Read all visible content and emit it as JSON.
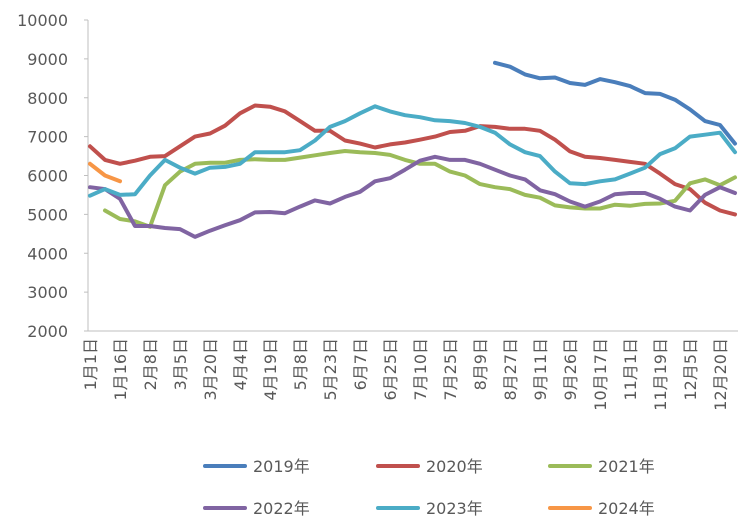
{
  "chart_data": {
    "type": "line",
    "categories": [
      "1月1日",
      null,
      "1月16日",
      null,
      "2月8日",
      null,
      "3月5日",
      null,
      "3月20日",
      null,
      "4月4日",
      null,
      "4月19日",
      null,
      "5月8日",
      null,
      "5月23日",
      null,
      "6月7日",
      null,
      "6月25日",
      null,
      "7月10日",
      null,
      "7月25日",
      null,
      "8月9日",
      null,
      "8月27日",
      null,
      "9月11日",
      null,
      "9月26日",
      null,
      "10月17日",
      null,
      "11月1日",
      null,
      "11月19日",
      null,
      "12月5日",
      null,
      "12月20日",
      null
    ],
    "series": [
      {
        "name": "2019年",
        "color": "#4a7ebb",
        "values": [
          null,
          null,
          null,
          null,
          null,
          null,
          null,
          null,
          null,
          null,
          null,
          null,
          null,
          null,
          null,
          null,
          null,
          null,
          null,
          null,
          null,
          null,
          null,
          null,
          null,
          null,
          null,
          8900,
          8800,
          8600,
          8500,
          8520,
          8380,
          8330,
          8480,
          8400,
          8300,
          8120,
          8100,
          7950,
          7700,
          7400,
          7300,
          6820
        ]
      },
      {
        "name": "2020年",
        "color": "#c0504d",
        "values": [
          6750,
          6400,
          6300,
          6380,
          6480,
          6500,
          6750,
          7000,
          7080,
          7280,
          7600,
          7800,
          7770,
          7650,
          7400,
          7150,
          7150,
          6900,
          6820,
          6720,
          6800,
          6850,
          6920,
          7000,
          7120,
          7150,
          7270,
          7250,
          7200,
          7200,
          7150,
          6920,
          6620,
          6480,
          6450,
          6400,
          6350,
          6300,
          6050,
          5780,
          5650,
          5300,
          5100,
          5000
        ]
      },
      {
        "name": "2021年",
        "color": "#9bbb59",
        "values": [
          null,
          5100,
          4880,
          4820,
          4680,
          5750,
          6100,
          6300,
          6330,
          6330,
          6400,
          6420,
          6400,
          6400,
          6460,
          6520,
          6580,
          6630,
          6600,
          6580,
          6530,
          6400,
          6300,
          6300,
          6100,
          6000,
          5780,
          5700,
          5650,
          5500,
          5430,
          5230,
          5180,
          5150,
          5150,
          5250,
          5220,
          5270,
          5280,
          5350,
          5800,
          5900,
          5750,
          5950
        ]
      },
      {
        "name": "2022年",
        "color": "#8064a2",
        "values": [
          5700,
          5650,
          5400,
          4700,
          4700,
          4650,
          4620,
          4420,
          4580,
          4720,
          4850,
          5050,
          5060,
          5030,
          5200,
          5360,
          5280,
          5450,
          5580,
          5850,
          5930,
          6150,
          6380,
          6480,
          6400,
          6400,
          6300,
          6150,
          6000,
          5900,
          5620,
          5520,
          5330,
          5200,
          5330,
          5520,
          5550,
          5550,
          5400,
          5200,
          5100,
          5500,
          5700,
          5550
        ]
      },
      {
        "name": "2023年",
        "color": "#4bacc6",
        "values": [
          5480,
          5650,
          5500,
          5520,
          6000,
          6400,
          6200,
          6050,
          6200,
          6220,
          6300,
          6600,
          6600,
          6600,
          6650,
          6900,
          7250,
          7400,
          7600,
          7780,
          7650,
          7550,
          7500,
          7420,
          7400,
          7350,
          7250,
          7100,
          6800,
          6600,
          6500,
          6100,
          5800,
          5780,
          5850,
          5900,
          6050,
          6200,
          6550,
          6700,
          7000,
          7050,
          7100,
          6600
        ]
      },
      {
        "name": "2024年",
        "color": "#f79646",
        "values": [
          6300,
          6000,
          5850,
          null,
          null,
          null,
          null,
          null,
          null,
          null,
          null,
          null,
          null,
          null,
          null,
          null,
          null,
          null,
          null,
          null,
          null,
          null,
          null,
          null,
          null,
          null,
          null,
          null,
          null,
          null,
          null,
          null,
          null,
          null,
          null,
          null,
          null,
          null,
          null,
          null,
          null,
          null,
          null,
          null
        ]
      }
    ],
    "ylim": [
      2000,
      10000
    ],
    "yticks": [
      2000,
      3000,
      4000,
      5000,
      6000,
      7000,
      8000,
      9000,
      10000
    ]
  }
}
